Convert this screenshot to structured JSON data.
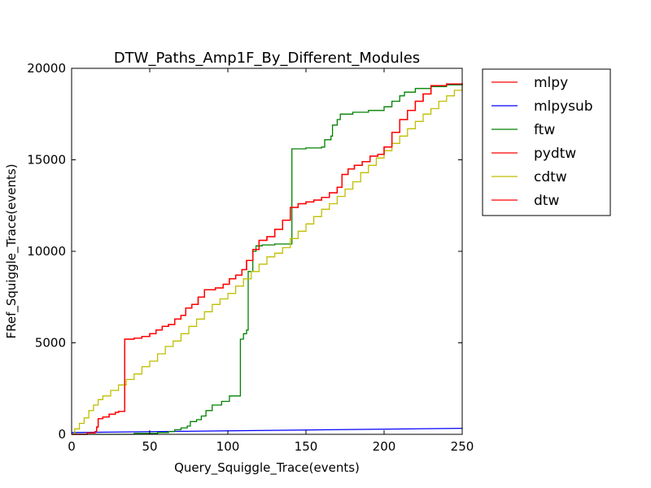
{
  "chart_data": {
    "type": "line",
    "title": "DTW_Paths_Amp1F_By_Different_Modules",
    "xlabel": "Query_Squiggle_Trace(events)",
    "ylabel": "FRef_Squiggle_Trace(events)",
    "xlim": [
      0,
      250
    ],
    "ylim": [
      0,
      20000
    ],
    "xticks": [
      0,
      50,
      100,
      150,
      200,
      250
    ],
    "yticks": [
      0,
      5000,
      10000,
      15000,
      20000
    ],
    "xtick_labels": [
      "0",
      "50",
      "100",
      "150",
      "200",
      "250"
    ],
    "ytick_labels": [
      "0",
      "5000",
      "10000",
      "15000",
      "20000"
    ],
    "grid": false,
    "legend_position": "outside-right-top",
    "series": [
      {
        "name": "mlpy",
        "color": "#ff0000",
        "step": true,
        "points": [
          [
            0,
            0
          ],
          [
            10,
            80
          ],
          [
            15,
            150
          ],
          [
            16,
            400
          ],
          [
            17,
            850
          ],
          [
            20,
            950
          ],
          [
            24,
            1100
          ],
          [
            28,
            1200
          ],
          [
            30,
            1250
          ],
          [
            34,
            1300
          ],
          [
            34,
            5200
          ],
          [
            40,
            5250
          ],
          [
            45,
            5350
          ],
          [
            50,
            5500
          ],
          [
            54,
            5700
          ],
          [
            58,
            5900
          ],
          [
            62,
            6000
          ],
          [
            66,
            6300
          ],
          [
            70,
            6500
          ],
          [
            73,
            6900
          ],
          [
            77,
            7100
          ],
          [
            81,
            7500
          ],
          [
            85,
            7900
          ],
          [
            92,
            8000
          ],
          [
            97,
            8200
          ],
          [
            101,
            8500
          ],
          [
            105,
            8700
          ],
          [
            109,
            9000
          ],
          [
            112,
            9500
          ],
          [
            116,
            10100
          ],
          [
            120,
            10600
          ],
          [
            125,
            10800
          ],
          [
            130,
            11200
          ],
          [
            135,
            11700
          ],
          [
            140,
            12400
          ],
          [
            145,
            12600
          ],
          [
            150,
            12700
          ],
          [
            155,
            12800
          ],
          [
            160,
            12950
          ],
          [
            165,
            13200
          ],
          [
            170,
            13500
          ],
          [
            173,
            14200
          ],
          [
            177,
            14500
          ],
          [
            181,
            14700
          ],
          [
            186,
            14900
          ],
          [
            191,
            15200
          ],
          [
            196,
            15300
          ],
          [
            200,
            15700
          ],
          [
            205,
            16500
          ],
          [
            210,
            17200
          ],
          [
            215,
            17700
          ],
          [
            220,
            18200
          ],
          [
            225,
            18600
          ],
          [
            230,
            19050
          ],
          [
            240,
            19150
          ],
          [
            250,
            19180
          ]
        ]
      },
      {
        "name": "mlpysub",
        "color": "#0000ff",
        "step": false,
        "points": [
          [
            0,
            100
          ],
          [
            250,
            330
          ]
        ]
      },
      {
        "name": "ftw",
        "color": "#008000",
        "step": true,
        "points": [
          [
            0,
            0
          ],
          [
            40,
            50
          ],
          [
            55,
            100
          ],
          [
            62,
            150
          ],
          [
            66,
            250
          ],
          [
            70,
            350
          ],
          [
            74,
            450
          ],
          [
            76,
            700
          ],
          [
            80,
            800
          ],
          [
            83,
            1000
          ],
          [
            86,
            1300
          ],
          [
            90,
            1600
          ],
          [
            96,
            1800
          ],
          [
            101,
            2100
          ],
          [
            107,
            2100
          ],
          [
            108,
            5200
          ],
          [
            110,
            5500
          ],
          [
            112,
            5700
          ],
          [
            113,
            8900
          ],
          [
            116,
            10000
          ],
          [
            118,
            10300
          ],
          [
            122,
            10350
          ],
          [
            130,
            10400
          ],
          [
            140,
            10400
          ],
          [
            141,
            15600
          ],
          [
            150,
            15650
          ],
          [
            160,
            15700
          ],
          [
            162,
            16100
          ],
          [
            166,
            16300
          ],
          [
            167,
            16900
          ],
          [
            170,
            17200
          ],
          [
            172,
            17500
          ],
          [
            180,
            17600
          ],
          [
            190,
            17700
          ],
          [
            200,
            17900
          ],
          [
            205,
            18200
          ],
          [
            210,
            18500
          ],
          [
            213,
            18700
          ],
          [
            220,
            18900
          ],
          [
            230,
            19000
          ],
          [
            240,
            19100
          ],
          [
            250,
            19150
          ]
        ]
      },
      {
        "name": "pydtw",
        "color": "#ff0000",
        "step": true,
        "points": [
          [
            0,
            0
          ],
          [
            10,
            80
          ],
          [
            15,
            150
          ],
          [
            16,
            400
          ],
          [
            17,
            850
          ],
          [
            20,
            950
          ],
          [
            24,
            1100
          ],
          [
            28,
            1200
          ],
          [
            30,
            1250
          ],
          [
            34,
            1300
          ],
          [
            34,
            5200
          ],
          [
            40,
            5250
          ],
          [
            45,
            5350
          ],
          [
            50,
            5500
          ],
          [
            54,
            5700
          ],
          [
            58,
            5900
          ],
          [
            62,
            6000
          ],
          [
            66,
            6300
          ],
          [
            70,
            6500
          ],
          [
            73,
            6900
          ],
          [
            77,
            7100
          ],
          [
            81,
            7500
          ],
          [
            85,
            7900
          ],
          [
            92,
            8000
          ],
          [
            97,
            8200
          ],
          [
            101,
            8500
          ],
          [
            105,
            8700
          ],
          [
            109,
            9000
          ],
          [
            112,
            9500
          ],
          [
            116,
            10100
          ],
          [
            120,
            10600
          ],
          [
            125,
            10800
          ],
          [
            130,
            11200
          ],
          [
            135,
            11700
          ],
          [
            140,
            12400
          ],
          [
            145,
            12600
          ],
          [
            150,
            12700
          ],
          [
            155,
            12800
          ],
          [
            160,
            12950
          ],
          [
            165,
            13200
          ],
          [
            170,
            13500
          ],
          [
            173,
            14200
          ],
          [
            177,
            14500
          ],
          [
            181,
            14700
          ],
          [
            186,
            14900
          ],
          [
            191,
            15200
          ],
          [
            196,
            15300
          ],
          [
            200,
            15700
          ],
          [
            205,
            16500
          ],
          [
            210,
            17200
          ],
          [
            215,
            17700
          ],
          [
            220,
            18200
          ],
          [
            225,
            18600
          ],
          [
            230,
            19050
          ],
          [
            240,
            19150
          ],
          [
            250,
            19180
          ]
        ]
      },
      {
        "name": "cdtw",
        "color": "#bfbf00",
        "step": true,
        "points": [
          [
            0,
            0
          ],
          [
            2,
            300
          ],
          [
            5,
            600
          ],
          [
            8,
            900
          ],
          [
            11,
            1300
          ],
          [
            14,
            1600
          ],
          [
            17,
            1900
          ],
          [
            20,
            2100
          ],
          [
            25,
            2400
          ],
          [
            30,
            2700
          ],
          [
            35,
            3000
          ],
          [
            40,
            3300
          ],
          [
            45,
            3700
          ],
          [
            50,
            4000
          ],
          [
            55,
            4400
          ],
          [
            60,
            4800
          ],
          [
            65,
            5100
          ],
          [
            70,
            5500
          ],
          [
            75,
            5900
          ],
          [
            80,
            6300
          ],
          [
            85,
            6700
          ],
          [
            90,
            7100
          ],
          [
            95,
            7400
          ],
          [
            100,
            7700
          ],
          [
            105,
            8100
          ],
          [
            110,
            8500
          ],
          [
            115,
            8900
          ],
          [
            120,
            9300
          ],
          [
            125,
            9700
          ],
          [
            130,
            9900
          ],
          [
            135,
            10200
          ],
          [
            140,
            10700
          ],
          [
            145,
            11100
          ],
          [
            150,
            11500
          ],
          [
            155,
            11900
          ],
          [
            160,
            12300
          ],
          [
            165,
            12600
          ],
          [
            170,
            13000
          ],
          [
            175,
            13400
          ],
          [
            180,
            13800
          ],
          [
            185,
            14300
          ],
          [
            190,
            14700
          ],
          [
            195,
            15100
          ],
          [
            200,
            15500
          ],
          [
            205,
            15900
          ],
          [
            210,
            16300
          ],
          [
            215,
            16700
          ],
          [
            220,
            17100
          ],
          [
            225,
            17500
          ],
          [
            230,
            17800
          ],
          [
            235,
            18200
          ],
          [
            240,
            18500
          ],
          [
            245,
            18800
          ],
          [
            250,
            19100
          ]
        ]
      },
      {
        "name": "dtw",
        "color": "#ff0000",
        "step": true,
        "points": [
          [
            0,
            0
          ],
          [
            10,
            80
          ],
          [
            15,
            150
          ],
          [
            16,
            400
          ],
          [
            17,
            850
          ],
          [
            20,
            950
          ],
          [
            24,
            1100
          ],
          [
            28,
            1200
          ],
          [
            30,
            1250
          ],
          [
            34,
            1300
          ],
          [
            34,
            5200
          ],
          [
            40,
            5250
          ],
          [
            45,
            5350
          ],
          [
            50,
            5500
          ],
          [
            54,
            5700
          ],
          [
            58,
            5900
          ],
          [
            62,
            6000
          ],
          [
            66,
            6300
          ],
          [
            70,
            6500
          ],
          [
            73,
            6900
          ],
          [
            77,
            7100
          ],
          [
            81,
            7500
          ],
          [
            85,
            7900
          ],
          [
            92,
            8000
          ],
          [
            97,
            8200
          ],
          [
            101,
            8500
          ],
          [
            105,
            8700
          ],
          [
            109,
            9000
          ],
          [
            112,
            9500
          ],
          [
            116,
            10100
          ],
          [
            120,
            10600
          ],
          [
            125,
            10800
          ],
          [
            130,
            11200
          ],
          [
            135,
            11700
          ],
          [
            140,
            12400
          ],
          [
            145,
            12600
          ],
          [
            150,
            12700
          ],
          [
            155,
            12800
          ],
          [
            160,
            12950
          ],
          [
            165,
            13200
          ],
          [
            170,
            13500
          ],
          [
            173,
            14200
          ],
          [
            177,
            14500
          ],
          [
            181,
            14700
          ],
          [
            186,
            14900
          ],
          [
            191,
            15200
          ],
          [
            196,
            15300
          ],
          [
            200,
            15700
          ],
          [
            205,
            16500
          ],
          [
            210,
            17200
          ],
          [
            215,
            17700
          ],
          [
            220,
            18200
          ],
          [
            225,
            18600
          ],
          [
            230,
            19050
          ],
          [
            240,
            19150
          ],
          [
            250,
            19180
          ]
        ]
      }
    ]
  }
}
